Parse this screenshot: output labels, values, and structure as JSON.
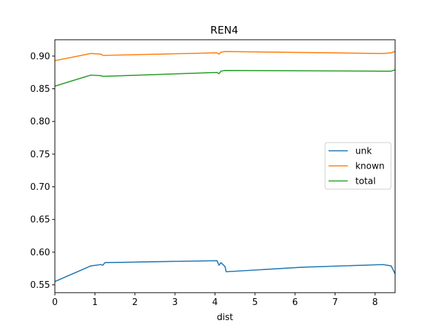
{
  "chart_data": {
    "type": "line",
    "title": "REN4",
    "xlabel": "dist",
    "ylabel": "",
    "xlim": [
      0,
      8.5
    ],
    "ylim": [
      0.538,
      0.925
    ],
    "xticks": [
      "0",
      "1",
      "2",
      "3",
      "4",
      "5",
      "6",
      "7",
      "8"
    ],
    "yticks": [
      "0.55",
      "0.60",
      "0.65",
      "0.70",
      "0.75",
      "0.80",
      "0.85",
      "0.90"
    ],
    "grid": false,
    "legend_position": "center-right",
    "series": [
      {
        "name": "unk",
        "color": "#1f77b4",
        "points": [
          [
            0,
            0.555
          ],
          [
            0.9,
            0.579
          ],
          [
            1.15,
            0.581
          ],
          [
            1.2,
            0.58
          ],
          [
            1.25,
            0.584
          ],
          [
            4.05,
            0.587
          ],
          [
            4.1,
            0.58
          ],
          [
            4.15,
            0.584
          ],
          [
            4.25,
            0.578
          ],
          [
            4.28,
            0.57
          ],
          [
            6.2,
            0.577
          ],
          [
            8.2,
            0.581
          ],
          [
            8.4,
            0.579
          ],
          [
            8.5,
            0.567
          ]
        ]
      },
      {
        "name": "known",
        "color": "#ff7f0e",
        "points": [
          [
            0,
            0.893
          ],
          [
            0.9,
            0.904
          ],
          [
            1.15,
            0.903
          ],
          [
            1.2,
            0.901
          ],
          [
            4.05,
            0.905
          ],
          [
            4.1,
            0.903
          ],
          [
            4.15,
            0.906
          ],
          [
            4.25,
            0.907
          ],
          [
            8.2,
            0.904
          ],
          [
            8.4,
            0.905
          ],
          [
            8.5,
            0.907
          ]
        ]
      },
      {
        "name": "total",
        "color": "#2ca02c",
        "points": [
          [
            0,
            0.854
          ],
          [
            0.9,
            0.871
          ],
          [
            1.15,
            0.87
          ],
          [
            1.2,
            0.869
          ],
          [
            4.05,
            0.875
          ],
          [
            4.1,
            0.873
          ],
          [
            4.15,
            0.877
          ],
          [
            4.25,
            0.878
          ],
          [
            8.2,
            0.877
          ],
          [
            8.4,
            0.877
          ],
          [
            8.5,
            0.879
          ]
        ]
      }
    ]
  }
}
